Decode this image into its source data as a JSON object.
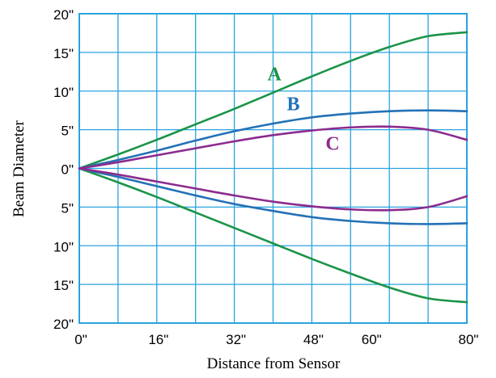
{
  "chart_data": {
    "type": "line",
    "title": "",
    "xlabel": "Distance from Sensor",
    "ylabel": "Beam Diameter",
    "x_ticks": [
      {
        "value": 0,
        "label": "0\""
      },
      {
        "value": 16,
        "label": "16\""
      },
      {
        "value": 32,
        "label": "32\""
      },
      {
        "value": 48,
        "label": "48\""
      },
      {
        "value": 60,
        "label": "60\""
      },
      {
        "value": 80,
        "label": "80\""
      }
    ],
    "y_ticks": [
      {
        "value": 20,
        "label": "20\""
      },
      {
        "value": 15,
        "label": "15\""
      },
      {
        "value": 10,
        "label": "10\""
      },
      {
        "value": 5,
        "label": "5\""
      },
      {
        "value": 0,
        "label": "0\""
      },
      {
        "value": -5,
        "label": "5\""
      },
      {
        "value": -10,
        "label": "10\""
      },
      {
        "value": -15,
        "label": "15\""
      },
      {
        "value": -20,
        "label": "20\""
      }
    ],
    "xlim": [
      0,
      80
    ],
    "ylim": [
      -20,
      20
    ],
    "grid": true,
    "grid_color": "#29a3df",
    "legend": "none",
    "series": [
      {
        "name": "A",
        "color": "#1a9448",
        "x": [
          0,
          8,
          16,
          24,
          32,
          40,
          48,
          56,
          64,
          72,
          80
        ],
        "upper": [
          0,
          1.8,
          3.7,
          5.7,
          7.7,
          9.8,
          11.9,
          13.9,
          15.7,
          17.1,
          17.6
        ],
        "lower": [
          0,
          -1.8,
          -3.7,
          -5.7,
          -7.7,
          -9.7,
          -11.7,
          -13.6,
          -15.4,
          -16.8,
          -17.3
        ]
      },
      {
        "name": "B",
        "color": "#2371b6",
        "x": [
          0,
          8,
          16,
          24,
          32,
          40,
          48,
          56,
          64,
          72,
          80
        ],
        "upper": [
          0,
          1.1,
          2.3,
          3.6,
          4.8,
          5.8,
          6.6,
          7.1,
          7.4,
          7.5,
          7.4
        ],
        "lower": [
          0,
          -1.1,
          -2.3,
          -3.5,
          -4.6,
          -5.5,
          -6.3,
          -6.8,
          -7.1,
          -7.2,
          -7.1
        ]
      },
      {
        "name": "C",
        "color": "#8c2b8f",
        "x": [
          0,
          8,
          16,
          24,
          32,
          40,
          48,
          56,
          64,
          72,
          80
        ],
        "upper": [
          0,
          0.8,
          1.7,
          2.6,
          3.5,
          4.3,
          4.9,
          5.3,
          5.4,
          5.0,
          3.7
        ],
        "lower": [
          0,
          -0.8,
          -1.7,
          -2.6,
          -3.5,
          -4.3,
          -4.9,
          -5.3,
          -5.4,
          -5.0,
          -3.6
        ]
      }
    ]
  }
}
